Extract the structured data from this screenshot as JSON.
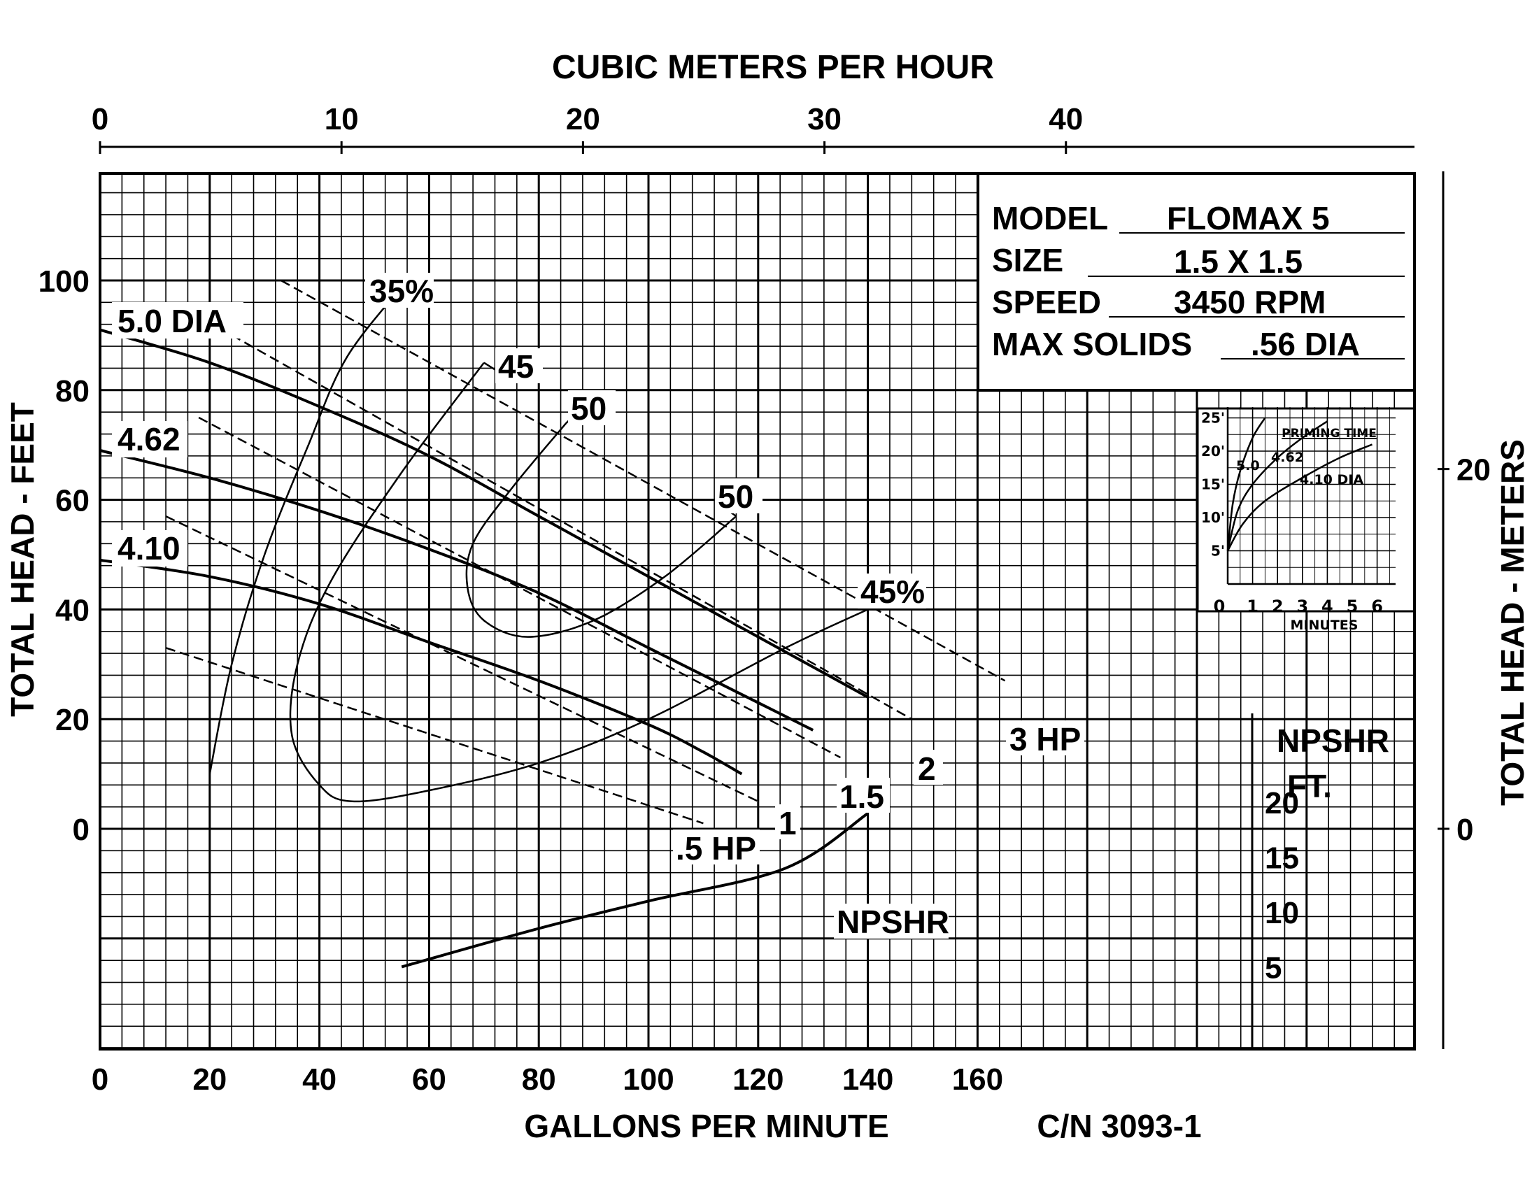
{
  "chart_data": {
    "type": "line",
    "title": "",
    "xlabel": "GALLONS PER MINUTE",
    "x2label": "CUBIC METERS PER HOUR",
    "ylabel": "TOTAL HEAD - FEET",
    "y2label": "TOTAL HEAD - METERS",
    "catalog": "C/N 3093-1",
    "xlim": [
      0,
      240
    ],
    "ylim": [
      -40,
      120
    ],
    "grid": true,
    "x_ticks": [
      "0",
      "20",
      "40",
      "60",
      "80",
      "100",
      "120",
      "140",
      "160"
    ],
    "y_ticks": [
      "0",
      "20",
      "40",
      "60",
      "80",
      "100"
    ],
    "x2_ticks": [
      "0",
      "10",
      "20",
      "30",
      "40"
    ],
    "y2_ticks": [
      "0",
      "20"
    ],
    "npshr_axis": {
      "title_line1": "NPSHR",
      "title_line2": "FT.",
      "ticks": [
        "5",
        "10",
        "15",
        "20"
      ]
    },
    "spec": {
      "model_label": "MODEL",
      "model": "FLOMAX 5",
      "size_label": "SIZE",
      "size": "1.5 X 1.5",
      "speed_label": "SPEED",
      "speed": "3450 RPM",
      "solids_label": "MAX SOLIDS",
      "solids": ".56 DIA"
    },
    "series": [
      {
        "name": "5.0 DIA",
        "points": [
          [
            0,
            91
          ],
          [
            20,
            85
          ],
          [
            40,
            77
          ],
          [
            60,
            68
          ],
          [
            80,
            57
          ],
          [
            100,
            46
          ],
          [
            120,
            35
          ],
          [
            140,
            24
          ]
        ]
      },
      {
        "name": "4.62",
        "points": [
          [
            0,
            69
          ],
          [
            20,
            64
          ],
          [
            40,
            58
          ],
          [
            60,
            51
          ],
          [
            80,
            43
          ],
          [
            100,
            33
          ],
          [
            120,
            23
          ],
          [
            130,
            18
          ]
        ]
      },
      {
        "name": "4.10",
        "points": [
          [
            0,
            49
          ],
          [
            20,
            46
          ],
          [
            40,
            41
          ],
          [
            60,
            34
          ],
          [
            80,
            27
          ],
          [
            100,
            19
          ],
          [
            110,
            14
          ],
          [
            117,
            10
          ]
        ]
      }
    ],
    "power_lines": [
      {
        "label": "3 HP",
        "points": [
          [
            33,
            100
          ],
          [
            165,
            27
          ]
        ]
      },
      {
        "label": "2",
        "points": [
          [
            17,
            94
          ],
          [
            148,
            20
          ]
        ]
      },
      {
        "label": "1.5",
        "points": [
          [
            18,
            75
          ],
          [
            135,
            13
          ]
        ]
      },
      {
        "label": "1",
        "points": [
          [
            12,
            57
          ],
          [
            120,
            5
          ]
        ]
      },
      {
        "label": ".5 HP",
        "points": [
          [
            12,
            33
          ],
          [
            110,
            1
          ]
        ]
      }
    ],
    "efficiency_curves": [
      {
        "label": "35%",
        "points": [
          [
            20,
            10
          ],
          [
            24,
            30
          ],
          [
            30,
            50
          ],
          [
            38,
            70
          ],
          [
            45,
            86
          ],
          [
            56,
            100
          ]
        ]
      },
      {
        "label": "45",
        "points": [
          [
            70,
            85
          ],
          [
            55,
            65
          ],
          [
            42,
            45
          ],
          [
            36,
            30
          ],
          [
            35,
            17
          ],
          [
            40,
            8
          ],
          [
            46,
            5
          ],
          [
            60,
            7
          ],
          [
            80,
            12
          ],
          [
            100,
            20
          ],
          [
            125,
            33
          ],
          [
            140,
            40
          ]
        ]
      },
      {
        "label": "50",
        "points": [
          [
            85,
            74
          ],
          [
            75,
            62
          ],
          [
            68,
            52
          ],
          [
            67,
            44
          ],
          [
            70,
            38
          ],
          [
            78,
            35
          ],
          [
            90,
            38
          ],
          [
            103,
            46
          ],
          [
            116,
            57
          ]
        ]
      }
    ],
    "efficiency_labels": [
      "35%",
      "45",
      "50",
      "50",
      "45%"
    ],
    "npshr": {
      "label": "NPSHR",
      "points": [
        [
          55,
          5
        ],
        [
          80,
          8.5
        ],
        [
          100,
          11
        ],
        [
          125,
          14
        ],
        [
          140,
          19
        ]
      ]
    },
    "inset": {
      "title": "PRIMING TIME",
      "xlabel": "MINUTES",
      "x_ticks": [
        "0",
        "1",
        "2",
        "3",
        "4",
        "5",
        "6"
      ],
      "y_ticks": [
        "5'",
        "10'",
        "15'",
        "20'",
        "25'"
      ],
      "curve_labels": [
        "5.0",
        "4.62",
        "4.10 DIA"
      ],
      "series": [
        {
          "name": "5.0",
          "points": [
            [
              0,
              5
            ],
            [
              0.2,
              12
            ],
            [
              0.5,
              17
            ],
            [
              1,
              22
            ],
            [
              1.5,
              25
            ]
          ]
        },
        {
          "name": "4.62",
          "points": [
            [
              0,
              5
            ],
            [
              0.4,
              11
            ],
            [
              1,
              15
            ],
            [
              2,
              19
            ],
            [
              3,
              22
            ],
            [
              4,
              24.5
            ]
          ]
        },
        {
          "name": "4.10 DIA",
          "points": [
            [
              0,
              5
            ],
            [
              0.6,
              9
            ],
            [
              1.5,
              12.5
            ],
            [
              3,
              16
            ],
            [
              4.5,
              19
            ],
            [
              5.8,
              21
            ]
          ]
        }
      ]
    }
  }
}
